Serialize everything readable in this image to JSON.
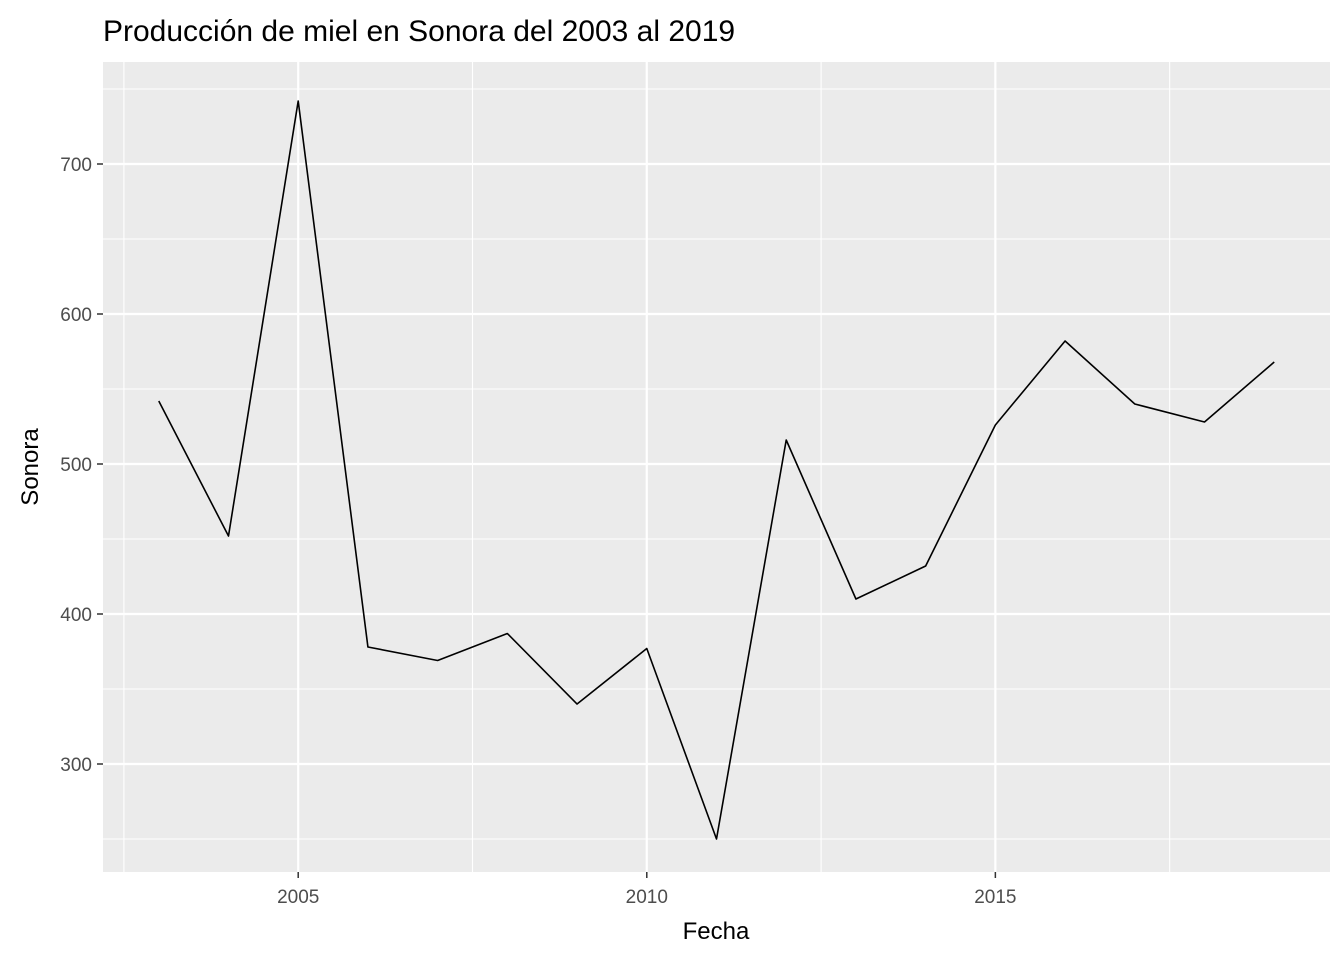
{
  "chart_data": {
    "type": "line",
    "title": "Producción de miel en Sonora del 2003 al 2019",
    "xlabel": "Fecha",
    "ylabel": "Sonora",
    "x": [
      2003,
      2004,
      2005,
      2006,
      2007,
      2008,
      2009,
      2010,
      2011,
      2012,
      2013,
      2014,
      2015,
      2016,
      2017,
      2018,
      2019
    ],
    "series": [
      {
        "values": [
          542,
          452,
          742,
          378,
          369,
          387,
          340,
          377,
          250,
          516,
          410,
          432,
          526,
          582,
          540,
          528,
          568
        ]
      }
    ],
    "xlim": [
      2002.2,
      2019.8
    ],
    "ylim": [
      228,
      768
    ],
    "x_ticks": [
      2005,
      2010,
      2015
    ],
    "x_tick_labels": [
      "2005",
      "2010",
      "2015"
    ],
    "y_ticks": [
      300,
      400,
      500,
      600,
      700
    ],
    "y_tick_labels": [
      "300",
      "400",
      "500",
      "600",
      "700"
    ],
    "grid": true,
    "line_color": "#000000",
    "panel_background": "#ebebeb",
    "grid_color": "#ffffff"
  }
}
